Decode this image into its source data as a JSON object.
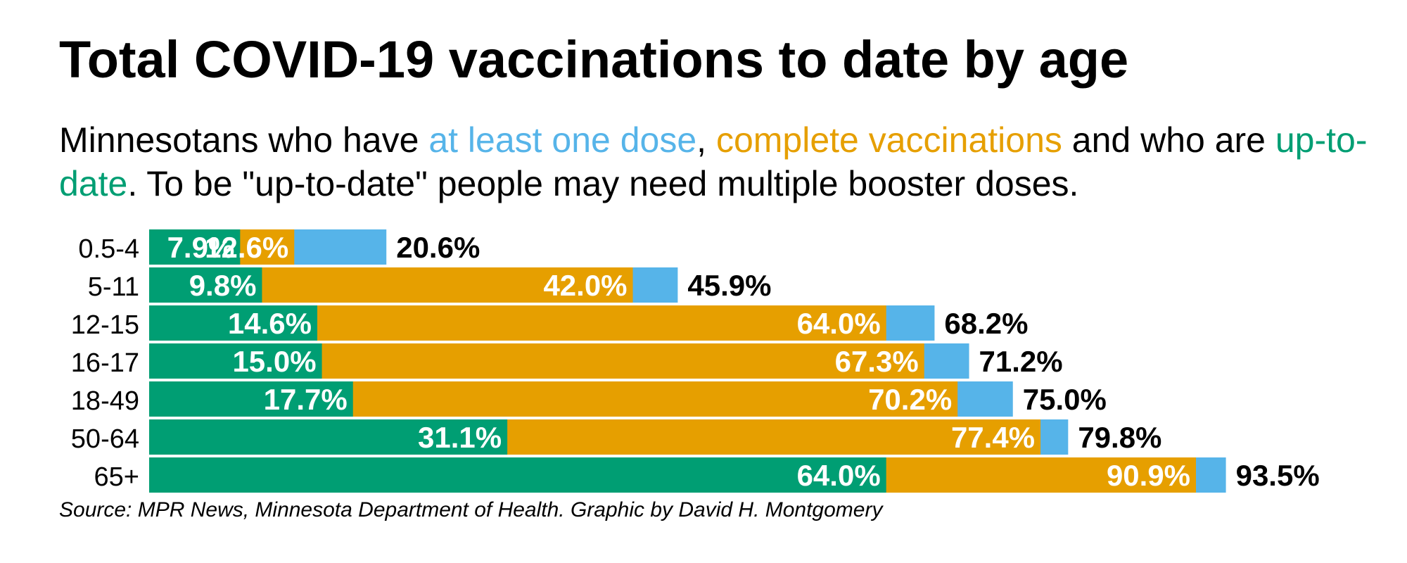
{
  "title": "Total COVID-19 vaccinations to date by age",
  "subtitle": {
    "part1": "Minnesotans who have ",
    "one_dose_phrase": "at least one dose",
    "part2": ", ",
    "complete_phrase": "complete vaccinations",
    "part3": " and who are ",
    "uptodate_phrase": "up-to-date",
    "part4": ". To be \"up-to-date\" people may need multiple booster doses."
  },
  "source": "Source: MPR News, Minnesota Department of Health. Graphic by David H. Montgomery",
  "colors": {
    "at_least_one_dose": "#56b4e9",
    "complete": "#e69f00",
    "up_to_date": "#009e73",
    "label_inside": "#ffffff",
    "label_outside": "#000000"
  },
  "chart_data": {
    "type": "bar",
    "orientation": "horizontal",
    "overlapping": true,
    "title": "Total COVID-19 vaccinations to date by age",
    "xlabel": "",
    "ylabel": "",
    "xlim": [
      0,
      100
    ],
    "unit": "%",
    "categories": [
      "0.5-4",
      "5-11",
      "12-15",
      "16-17",
      "18-49",
      "50-64",
      "65+"
    ],
    "series": [
      {
        "name": "at least one dose",
        "values": [
          20.6,
          45.9,
          68.2,
          71.2,
          75.0,
          79.8,
          93.5
        ],
        "labels": [
          "20.6%",
          "45.9%",
          "68.2%",
          "71.2%",
          "75.0%",
          "79.8%",
          "93.5%"
        ]
      },
      {
        "name": "complete vaccinations",
        "values": [
          12.6,
          42.0,
          64.0,
          67.3,
          70.2,
          77.4,
          90.9
        ],
        "labels": [
          "12.6%",
          "42.0%",
          "64.0%",
          "67.3%",
          "70.2%",
          "77.4%",
          "90.9%"
        ]
      },
      {
        "name": "up-to-date",
        "values": [
          7.9,
          9.8,
          14.6,
          15.0,
          17.7,
          31.1,
          64.0
        ],
        "labels": [
          "7.9%",
          "9.8%",
          "14.6%",
          "15.0%",
          "17.7%",
          "31.1%",
          "64.0%"
        ]
      }
    ]
  }
}
